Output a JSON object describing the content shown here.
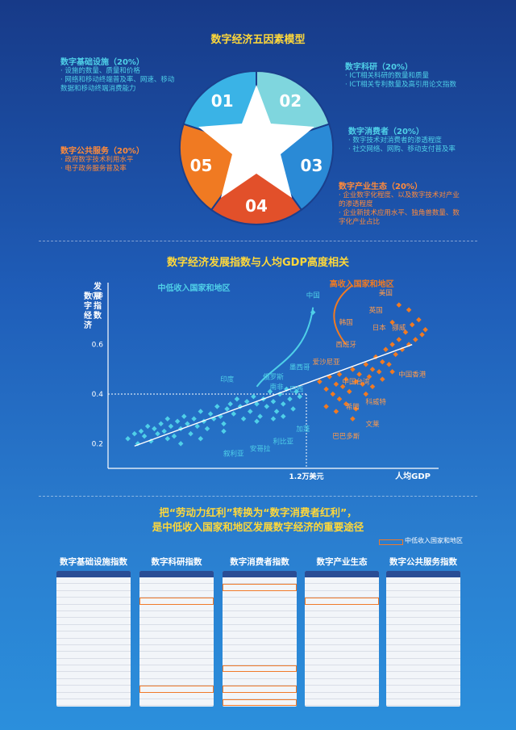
{
  "header": {
    "title": "数字经济五因素模型"
  },
  "pentagon": {
    "segments": [
      {
        "num": "01",
        "color": "#3ab3e6"
      },
      {
        "num": "02",
        "color": "#7fd6de"
      },
      {
        "num": "03",
        "color": "#2a8ad6"
      },
      {
        "num": "04",
        "color": "#e2502a"
      },
      {
        "num": "05",
        "color": "#f07a22"
      }
    ]
  },
  "factors": {
    "infra": {
      "heading": "数字基础设施（20%）",
      "bullets": [
        "· 设施的数量、质量和价格",
        "· 网络和移动终端普及率、网速、移动数据和移动终端消费能力"
      ]
    },
    "research": {
      "heading": "数字科研（20%）",
      "bullets": [
        "· ICT相关科研的数量和质量",
        "· ICT相关专利数量及高引用论文指数"
      ]
    },
    "consumer": {
      "heading": "数字消费者（20%）",
      "bullets": [
        "· 数字技术对消费者的渗透程度",
        "· 社交网络、网购、移动支付普及率"
      ]
    },
    "public": {
      "heading": "数字公共服务（20%）",
      "bullets": [
        "· 政府数字技术利用水平",
        "· 电子政务服务普及率"
      ]
    },
    "industry": {
      "heading": "数字产业生态（20%）",
      "bullets": [
        "· 企业数字化程度、以及数字技术对产业的渗透程度",
        "· 企业新技术应用水平、独角兽数量、数字化产业占比"
      ]
    }
  },
  "section2": {
    "title": "数字经济发展指数与人均GDP高度相关"
  },
  "chart_data": {
    "type": "scatter",
    "title": "数字经济发展指数与人均GDP高度相关",
    "ylabel": "数字经济发展指数",
    "xlabel": "人均GDP",
    "y_ticks": [
      "0.8",
      "0.6",
      "0.4",
      "0.2"
    ],
    "ylim": [
      0.1,
      0.85
    ],
    "threshold_x_label": "1.2万美元",
    "threshold_y": 0.4,
    "group_labels": {
      "low": "中低收入国家和地区",
      "high": "高收入国家和地区"
    },
    "series": [
      {
        "name": "中低收入国家和地区",
        "color": "#4fd0e8",
        "points": [
          [
            0.06,
            0.22
          ],
          [
            0.08,
            0.24
          ],
          [
            0.09,
            0.2
          ],
          [
            0.1,
            0.25
          ],
          [
            0.11,
            0.23
          ],
          [
            0.12,
            0.27
          ],
          [
            0.13,
            0.21
          ],
          [
            0.14,
            0.26
          ],
          [
            0.15,
            0.24
          ],
          [
            0.16,
            0.28
          ],
          [
            0.17,
            0.25
          ],
          [
            0.18,
            0.3
          ],
          [
            0.19,
            0.27
          ],
          [
            0.2,
            0.23
          ],
          [
            0.21,
            0.29
          ],
          [
            0.22,
            0.26
          ],
          [
            0.23,
            0.31
          ],
          [
            0.24,
            0.28
          ],
          [
            0.25,
            0.24
          ],
          [
            0.26,
            0.3
          ],
          [
            0.27,
            0.27
          ],
          [
            0.28,
            0.33
          ],
          [
            0.29,
            0.29
          ],
          [
            0.3,
            0.26
          ],
          [
            0.31,
            0.32
          ],
          [
            0.32,
            0.3
          ],
          [
            0.33,
            0.35
          ],
          [
            0.34,
            0.31
          ],
          [
            0.35,
            0.28
          ],
          [
            0.36,
            0.34
          ],
          [
            0.37,
            0.36
          ],
          [
            0.38,
            0.32
          ],
          [
            0.39,
            0.38
          ],
          [
            0.4,
            0.35
          ],
          [
            0.41,
            0.3
          ],
          [
            0.42,
            0.37
          ],
          [
            0.43,
            0.33
          ],
          [
            0.44,
            0.39
          ],
          [
            0.45,
            0.36
          ],
          [
            0.46,
            0.31
          ],
          [
            0.47,
            0.38
          ],
          [
            0.48,
            0.35
          ],
          [
            0.49,
            0.41
          ],
          [
            0.5,
            0.37
          ],
          [
            0.51,
            0.33
          ],
          [
            0.52,
            0.4
          ],
          [
            0.53,
            0.36
          ],
          [
            0.54,
            0.42
          ],
          [
            0.55,
            0.38
          ],
          [
            0.56,
            0.34
          ],
          [
            0.57,
            0.41
          ],
          [
            0.58,
            0.39
          ],
          [
            0.35,
            0.25
          ],
          [
            0.45,
            0.29
          ],
          [
            0.5,
            0.3
          ],
          [
            0.53,
            0.31
          ],
          [
            0.28,
            0.22
          ],
          [
            0.22,
            0.2
          ],
          [
            0.18,
            0.22
          ],
          [
            0.62,
            0.73
          ]
        ]
      },
      {
        "name": "高收入国家和地区",
        "color": "#f07a22",
        "points": [
          [
            0.64,
            0.45
          ],
          [
            0.66,
            0.42
          ],
          [
            0.67,
            0.47
          ],
          [
            0.68,
            0.4
          ],
          [
            0.69,
            0.44
          ],
          [
            0.7,
            0.48
          ],
          [
            0.71,
            0.43
          ],
          [
            0.72,
            0.46
          ],
          [
            0.73,
            0.41
          ],
          [
            0.74,
            0.5
          ],
          [
            0.75,
            0.45
          ],
          [
            0.76,
            0.48
          ],
          [
            0.77,
            0.44
          ],
          [
            0.78,
            0.52
          ],
          [
            0.79,
            0.47
          ],
          [
            0.8,
            0.5
          ],
          [
            0.81,
            0.55
          ],
          [
            0.82,
            0.49
          ],
          [
            0.83,
            0.53
          ],
          [
            0.84,
            0.58
          ],
          [
            0.85,
            0.52
          ],
          [
            0.86,
            0.6
          ],
          [
            0.87,
            0.56
          ],
          [
            0.88,
            0.62
          ],
          [
            0.89,
            0.58
          ],
          [
            0.9,
            0.65
          ],
          [
            0.91,
            0.6
          ],
          [
            0.92,
            0.68
          ],
          [
            0.93,
            0.62
          ],
          [
            0.94,
            0.7
          ],
          [
            0.95,
            0.64
          ],
          [
            0.96,
            0.66
          ],
          [
            0.88,
            0.76
          ],
          [
            0.91,
            0.74
          ],
          [
            0.86,
            0.69
          ],
          [
            0.7,
            0.38
          ],
          [
            0.72,
            0.36
          ],
          [
            0.75,
            0.34
          ],
          [
            0.78,
            0.4
          ],
          [
            0.8,
            0.43
          ],
          [
            0.83,
            0.46
          ],
          [
            0.86,
            0.49
          ],
          [
            0.66,
            0.35
          ],
          [
            0.69,
            0.33
          ],
          [
            0.74,
            0.3
          ]
        ]
      }
    ],
    "labels": [
      {
        "text": "中国",
        "x": 0.62,
        "y": 0.79,
        "group": "low"
      },
      {
        "text": "墨西哥",
        "x": 0.58,
        "y": 0.5,
        "group": "low"
      },
      {
        "text": "俄罗斯",
        "x": 0.5,
        "y": 0.46,
        "group": "low"
      },
      {
        "text": "南非",
        "x": 0.51,
        "y": 0.42,
        "group": "low"
      },
      {
        "text": "印度",
        "x": 0.36,
        "y": 0.45,
        "group": "low"
      },
      {
        "text": "巴西",
        "x": 0.57,
        "y": 0.41,
        "group": "low"
      },
      {
        "text": "加蓬",
        "x": 0.59,
        "y": 0.25,
        "group": "low"
      },
      {
        "text": "利比亚",
        "x": 0.53,
        "y": 0.2,
        "group": "low"
      },
      {
        "text": "安哥拉",
        "x": 0.46,
        "y": 0.17,
        "group": "low"
      },
      {
        "text": "叙利亚",
        "x": 0.38,
        "y": 0.15,
        "group": "low"
      },
      {
        "text": "美国",
        "x": 0.84,
        "y": 0.8,
        "group": "high"
      },
      {
        "text": "英国",
        "x": 0.81,
        "y": 0.73,
        "group": "high"
      },
      {
        "text": "韩国",
        "x": 0.72,
        "y": 0.68,
        "group": "high"
      },
      {
        "text": "日本",
        "x": 0.82,
        "y": 0.66,
        "group": "high"
      },
      {
        "text": "挪威",
        "x": 0.88,
        "y": 0.66,
        "group": "high"
      },
      {
        "text": "西班牙",
        "x": 0.72,
        "y": 0.59,
        "group": "high"
      },
      {
        "text": "爱沙尼亚",
        "x": 0.66,
        "y": 0.52,
        "group": "high"
      },
      {
        "text": "中国台湾",
        "x": 0.75,
        "y": 0.44,
        "group": "high"
      },
      {
        "text": "中国香港",
        "x": 0.92,
        "y": 0.47,
        "group": "high"
      },
      {
        "text": "希腊",
        "x": 0.74,
        "y": 0.34,
        "group": "high"
      },
      {
        "text": "科威特",
        "x": 0.81,
        "y": 0.36,
        "group": "high"
      },
      {
        "text": "文莱",
        "x": 0.8,
        "y": 0.27,
        "group": "high"
      },
      {
        "text": "巴巴多斯",
        "x": 0.72,
        "y": 0.22,
        "group": "high"
      }
    ],
    "grid": false
  },
  "section3": {
    "line1": "把“劳动力红利”转换为“数字消费者红利”，",
    "line2": "是中低收入国家和地区发展数字经济的重要途径",
    "legend": "中低收入国家和地区"
  },
  "tables": [
    {
      "title": "数字基础设施指数"
    },
    {
      "title": "数字科研指数"
    },
    {
      "title": "数字消费者指数"
    },
    {
      "title": "数字产业生态"
    },
    {
      "title": "数字公共服务指数"
    }
  ]
}
